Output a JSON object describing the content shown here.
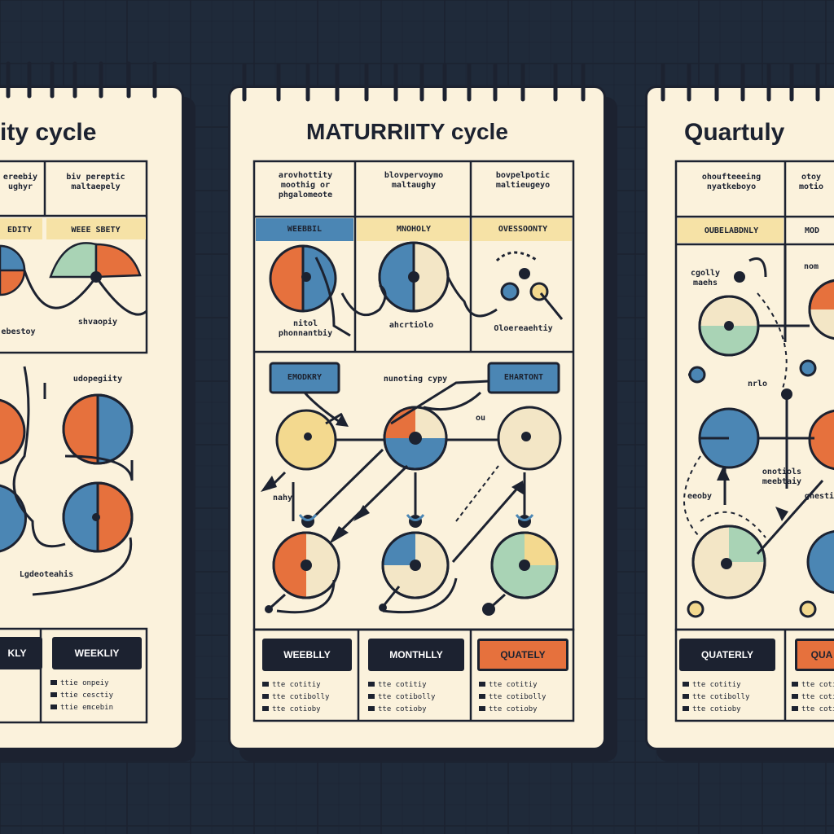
{
  "colors": {
    "background": "#dcecf3",
    "paper": "#fbf2dc",
    "ink": "#1c2230",
    "orange": "#e6713d",
    "blue": "#4b86b4",
    "cream": "#f3d98f",
    "green": "#a9d3b5",
    "yellow_tag": "#f6e2a6"
  },
  "left_panel": {
    "title": "ity cycle",
    "header_col1": "ereebiy\nughyr",
    "header_col2": "biv pereptic\nmaltaepely",
    "tag_col1": "EDITY",
    "tag_col2": "WEEE SBETY",
    "label_mid": "shvaopiy",
    "label_left": "ebestoy",
    "label_row2": "udopegiity",
    "label_bottom": "Lgdeoteahis",
    "btn_left": "KLY",
    "btn_right": "WEEKLIY",
    "list": [
      "ttie onpeiy",
      "ttie cesctiy",
      "ttie emcebin"
    ]
  },
  "center_panel": {
    "title": "MATURRIITY cycle",
    "header_col1": "arovhottity\nmoothig or\nphgalomeote",
    "header_col2": "blovpervoymo\nmaltaughy",
    "header_col3": "bovpelpotic\nmaltieugeyo",
    "tag_weekly": "WEEBBIL",
    "tag_monthly": "MNOHOLY",
    "tag_over": "OVESSOONTY",
    "label_a": "nitol\nphonnantbiy",
    "label_b": "ahcrtiolo",
    "label_c": "Oloereaehtiy",
    "tag_row2_left": "EMODKRY",
    "tag_row2_mid": "nunoting cypy",
    "tag_row2_right": "EHARTONT",
    "label_ou": "ou",
    "label_nahy": "nahy",
    "btn_weekly": "WEEBLLY",
    "btn_monthly": "MONTHLLY",
    "btn_quarterly": "QUATELY",
    "list_col1": [
      "tte cotitiy",
      "tte cotibolly",
      "tte cotioby"
    ],
    "list_col2": [
      "tte cotitiy",
      "tte cotibolly",
      "tte cotioby"
    ],
    "list_col3": [
      "tte cotitiy",
      "tte cotibolly",
      "tte cotioby"
    ]
  },
  "right_panel": {
    "title": "Quartuly",
    "header_col1": "ohoufteeeing\nnyatkeboyo",
    "header_col2": "otoy\nmotio",
    "tag_col1": "OUBELABDNLY",
    "tag_col2": "MOD",
    "label_a": "cgolly\nmaehs",
    "label_b": "nom",
    "label_c": "nrlo",
    "label_d": "onotiols\nmeebtaiy",
    "label_e": "eeoby",
    "label_f": "ghestiy",
    "btn_left": "QUATERLY",
    "btn_right": "QUA",
    "list_col1": [
      "tte cotitiy",
      "tte cotibolly",
      "tte cotioby"
    ],
    "list_col2": [
      "tte cotitiy",
      "tte cotibolly",
      "tte cotioby"
    ]
  }
}
